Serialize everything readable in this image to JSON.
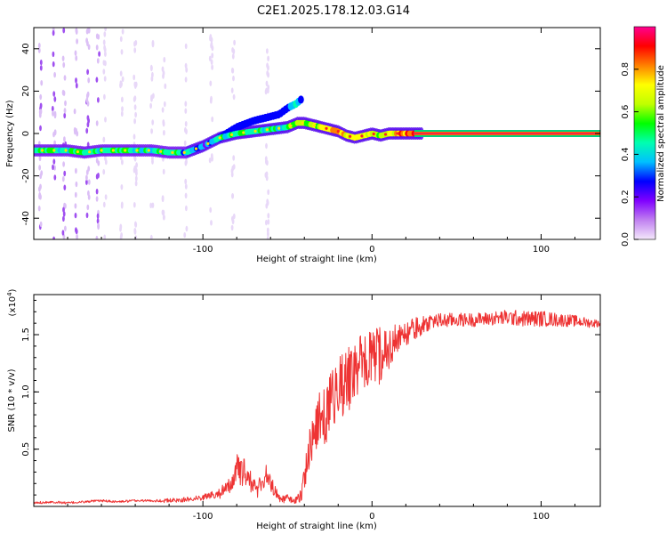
{
  "title": "C2E1.2025.178.12.03.G14",
  "chart_data": [
    {
      "type": "heatmap",
      "xlabel": "Height of straight line (km)",
      "ylabel": "Frequency (Hz)",
      "xlim": [
        -200,
        135
      ],
      "ylim": [
        -50,
        50
      ],
      "xticks": [
        -100,
        0,
        100
      ],
      "yticks": [
        -40,
        -20,
        0,
        20,
        40
      ],
      "colorbar": {
        "label": "Normalized spectral amplitude",
        "range": [
          0,
          1
        ],
        "ticks": [
          "0.0",
          "0.2",
          "0.4",
          "0.6",
          "0.8"
        ],
        "tick_values": [
          0.0,
          0.2,
          0.4,
          0.6,
          0.8
        ],
        "colors": [
          "#f4e8fb",
          "#c080f0",
          "#8000ff",
          "#0000ff",
          "#00c0ff",
          "#00ffb0",
          "#00ff00",
          "#c0ff00",
          "#ffff00",
          "#ff8000",
          "#ff0000",
          "#ff0090"
        ]
      },
      "ridge": {
        "x": [
          -200,
          -190,
          -180,
          -170,
          -160,
          -150,
          -140,
          -130,
          -120,
          -110,
          -100,
          -90,
          -80,
          -70,
          -60,
          -50,
          -44,
          -40,
          -35,
          -30,
          -25,
          -20,
          -15,
          -10,
          -5,
          0,
          5,
          10,
          15,
          20,
          25,
          30,
          40,
          60,
          80,
          100,
          120,
          135
        ],
        "frequency": [
          -8,
          -8,
          -8,
          -9,
          -8,
          -8,
          -8,
          -8,
          -9,
          -9,
          -6,
          -2,
          0,
          1,
          2,
          3,
          5,
          5,
          4,
          3,
          2,
          1,
          -1,
          -2,
          -1,
          0,
          -1,
          0,
          0,
          0,
          0,
          0,
          0,
          0,
          0,
          0,
          0,
          0
        ],
        "amplitude": [
          0.45,
          0.5,
          0.45,
          0.5,
          0.45,
          0.5,
          0.45,
          0.45,
          0.5,
          0.4,
          0.3,
          0.45,
          0.5,
          0.5,
          0.5,
          0.5,
          0.6,
          0.55,
          0.6,
          0.65,
          0.7,
          0.75,
          0.7,
          0.65,
          0.7,
          0.65,
          0.6,
          0.65,
          0.75,
          0.8,
          0.85,
          0.9,
          0.9,
          0.9,
          0.9,
          0.9,
          0.9,
          0.9
        ]
      },
      "branch": {
        "x": [
          -90,
          -80,
          -70,
          -60,
          -55,
          -50,
          -45,
          -42
        ],
        "frequency": [
          -2,
          3,
          6,
          8,
          9,
          12,
          14,
          16
        ],
        "amplitude": [
          0.3,
          0.3,
          0.3,
          0.25,
          0.3,
          0.3,
          0.45,
          0.3
        ]
      }
    },
    {
      "type": "line",
      "xlabel": "Height of straight line (km)",
      "ylabel": "SNR (10 * v/v)",
      "y_multiplier": "(x10",
      "y_multiplier_exp": "4",
      "y_multiplier_close": ")",
      "xlim": [
        -200,
        135
      ],
      "ylim": [
        0,
        1.85
      ],
      "xticks": [
        -100,
        0,
        100
      ],
      "yticks": [
        0.5,
        1.0,
        1.5
      ],
      "color": "#ee3333",
      "series": [
        {
          "x": [
            -200,
            -190,
            -180,
            -170,
            -160,
            -150,
            -140,
            -130,
            -120,
            -110,
            -105,
            -100,
            -95,
            -90,
            -85,
            -82,
            -80,
            -78,
            -75,
            -72,
            -70,
            -68,
            -65,
            -62,
            -60,
            -58,
            -55,
            -52,
            -50,
            -48,
            -45,
            -42,
            -40,
            -38,
            -35,
            -32,
            -30,
            -28,
            -25,
            -22,
            -20,
            -18,
            -15,
            -12,
            -10,
            -8,
            -5,
            -2,
            0,
            2,
            5,
            8,
            10,
            12,
            15,
            18,
            20,
            22,
            25,
            30,
            35,
            40,
            50,
            60,
            70,
            80,
            90,
            100,
            110,
            120,
            130,
            135
          ],
          "y": [
            0.03,
            0.04,
            0.03,
            0.04,
            0.05,
            0.04,
            0.05,
            0.05,
            0.05,
            0.06,
            0.07,
            0.08,
            0.1,
            0.12,
            0.15,
            0.25,
            0.35,
            0.28,
            0.3,
            0.22,
            0.18,
            0.15,
            0.22,
            0.28,
            0.2,
            0.15,
            0.08,
            0.06,
            0.08,
            0.06,
            0.05,
            0.1,
            0.25,
            0.45,
            0.6,
            0.7,
            0.85,
            0.75,
            0.9,
            1.0,
            1.05,
            1.05,
            1.1,
            1.15,
            1.18,
            1.22,
            1.25,
            1.25,
            1.28,
            1.3,
            1.32,
            1.35,
            1.38,
            1.42,
            1.45,
            1.48,
            1.5,
            1.52,
            1.55,
            1.58,
            1.62,
            1.62,
            1.63,
            1.63,
            1.64,
            1.65,
            1.64,
            1.64,
            1.63,
            1.62,
            1.6,
            1.6
          ],
          "noise": [
            0.01,
            0.01,
            0.01,
            0.01,
            0.01,
            0.01,
            0.01,
            0.01,
            0.02,
            0.02,
            0.02,
            0.03,
            0.03,
            0.05,
            0.08,
            0.12,
            0.15,
            0.12,
            0.12,
            0.1,
            0.08,
            0.08,
            0.1,
            0.1,
            0.08,
            0.06,
            0.04,
            0.03,
            0.03,
            0.03,
            0.03,
            0.06,
            0.12,
            0.2,
            0.2,
            0.22,
            0.25,
            0.25,
            0.25,
            0.28,
            0.28,
            0.28,
            0.3,
            0.3,
            0.28,
            0.28,
            0.25,
            0.28,
            0.28,
            0.25,
            0.25,
            0.22,
            0.2,
            0.18,
            0.15,
            0.12,
            0.1,
            0.1,
            0.1,
            0.08,
            0.07,
            0.07,
            0.06,
            0.06,
            0.06,
            0.07,
            0.07,
            0.07,
            0.06,
            0.05,
            0.04,
            0.03
          ]
        }
      ]
    }
  ]
}
